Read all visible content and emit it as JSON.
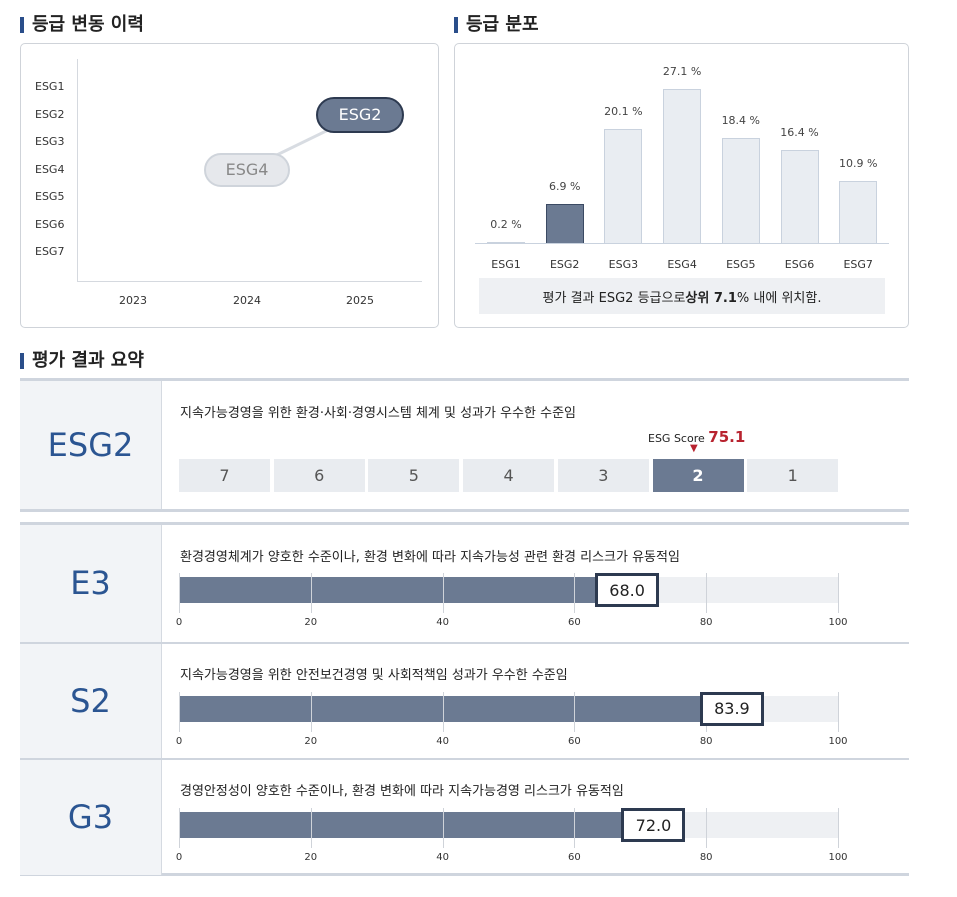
{
  "history": {
    "title": "등급 변동 이력",
    "y_labels": [
      "ESG1",
      "ESG2",
      "ESG3",
      "ESG4",
      "ESG5",
      "ESG6",
      "ESG7"
    ],
    "x_labels": [
      "2023",
      "2024",
      "2025"
    ],
    "points": [
      {
        "year": "2024",
        "grade": "ESG4"
      },
      {
        "year": "2025",
        "grade": "ESG2"
      }
    ]
  },
  "distribution": {
    "title": "등급 분포",
    "bars": [
      {
        "label": "ESG1",
        "pct": "0.2 %",
        "value": 0.2
      },
      {
        "label": "ESG2",
        "pct": "6.9 %",
        "value": 6.9
      },
      {
        "label": "ESG3",
        "pct": "20.1 %",
        "value": 20.1
      },
      {
        "label": "ESG4",
        "pct": "27.1 %",
        "value": 27.1
      },
      {
        "label": "ESG5",
        "pct": "18.4 %",
        "value": 18.4
      },
      {
        "label": "ESG6",
        "pct": "16.4 %",
        "value": 16.4
      },
      {
        "label": "ESG7",
        "pct": "10.9 %",
        "value": 10.9
      }
    ],
    "active": "ESG2",
    "note_prefix": "평가 결과 ESG2 등급으로 ",
    "note_bold": "상위 7.1",
    "note_suffix": "% 내에 위치함."
  },
  "summary": {
    "title": "평가 결과 요약",
    "overall": {
      "grade": "ESG2",
      "desc": "지속가능경영을 위한 환경·사회·경영시스템 체계 및 성과가 우수한 수준임",
      "score_label": "ESG Score",
      "score_value": "75.1",
      "marker": "▼",
      "scale": [
        "7",
        "6",
        "5",
        "4",
        "3",
        "2",
        "1"
      ],
      "active": "2"
    },
    "ticks": [
      "0",
      "20",
      "40",
      "60",
      "80",
      "100"
    ],
    "rows": [
      {
        "grade": "E3",
        "desc": "환경경영체계가 양호한 수준이나, 환경 변화에 따라 지속가능성 관련 환경 리스크가 유동적임",
        "score": 68.0,
        "label": "68.0"
      },
      {
        "grade": "S2",
        "desc": "지속가능경영을 위한 안전보건경영 및 사회적책임 성과가 우수한 수준임",
        "score": 83.9,
        "label": "83.9"
      },
      {
        "grade": "G3",
        "desc": "경영안정성이 양호한 수준이나, 환경 변화에 따라 지속가능경영 리스크가 유동적임",
        "score": 72.0,
        "label": "72.0"
      }
    ]
  },
  "colors": {
    "accent": "#2b5592",
    "bar": "#6b7a92",
    "score_red": "#b8232f"
  }
}
